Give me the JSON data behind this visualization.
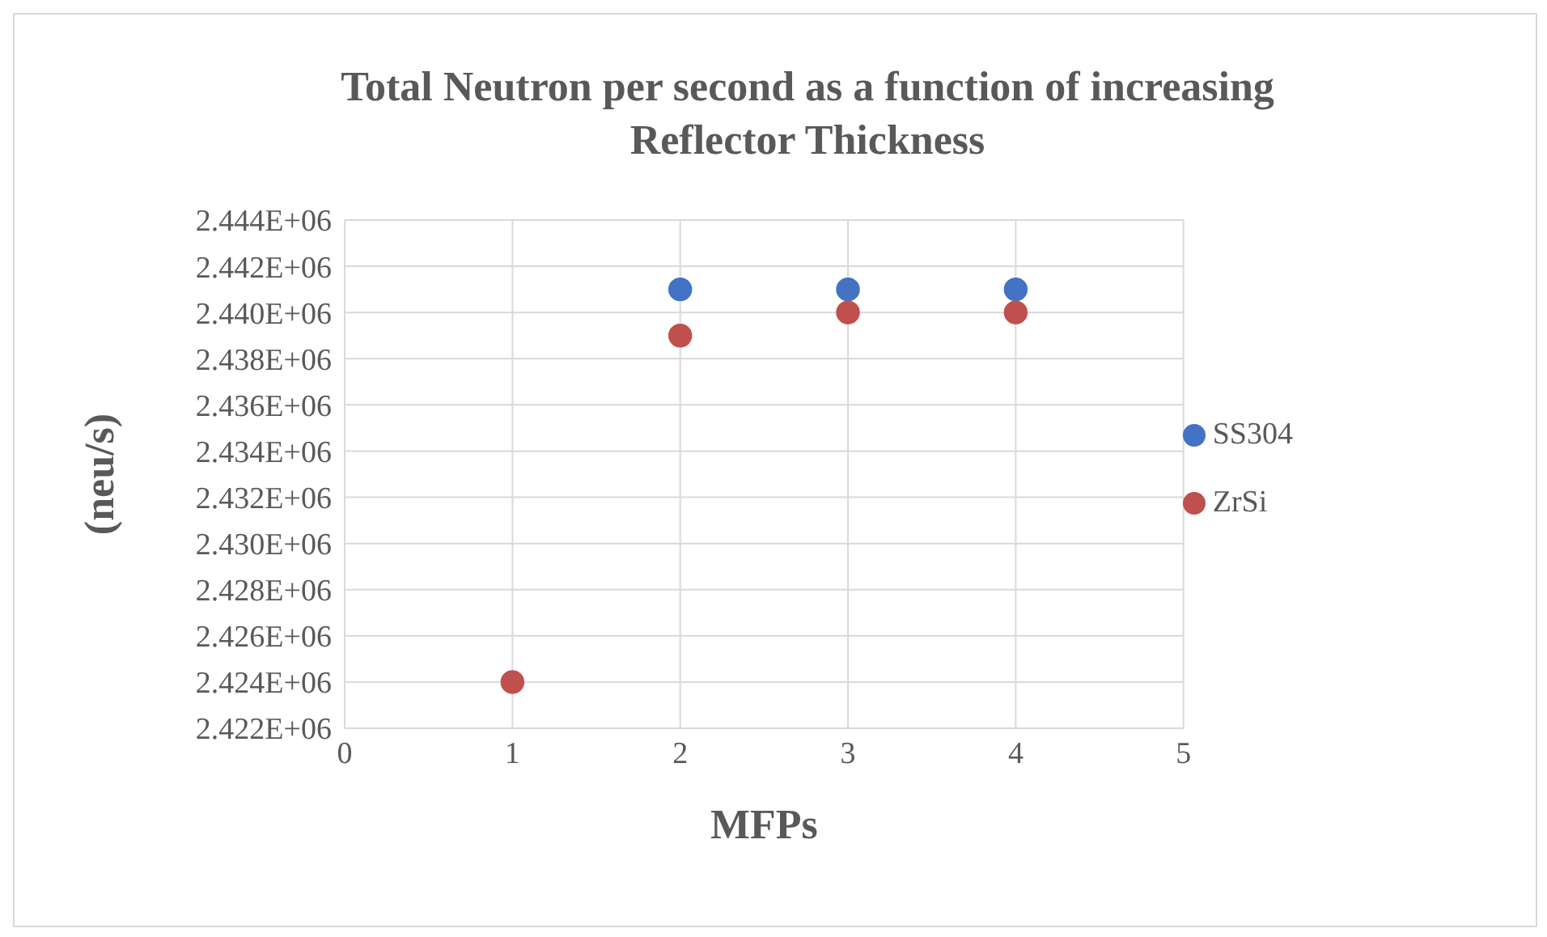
{
  "chart_data": {
    "type": "scatter",
    "title": "Total Neutron per second as a function of increasing Reflector Thickness",
    "xlabel": "MFPs",
    "ylabel": "(neu/s)",
    "x": [
      1,
      2,
      3,
      4
    ],
    "series": [
      {
        "name": "SS304",
        "color": "#4472c4",
        "values": [
          null,
          2441000,
          2441000,
          2441000
        ]
      },
      {
        "name": "ZrSi",
        "color": "#c0504d",
        "values": [
          2424000,
          2439000,
          2440000,
          2440000
        ]
      }
    ],
    "xlim": [
      0,
      5
    ],
    "xticks": [
      0,
      1,
      2,
      3,
      4,
      5
    ],
    "ylim": [
      2422000,
      2444000
    ],
    "yticks": [
      {
        "value": 2422000,
        "label": "2.422E+06"
      },
      {
        "value": 2424000,
        "label": "2.424E+06"
      },
      {
        "value": 2426000,
        "label": "2.426E+06"
      },
      {
        "value": 2428000,
        "label": "2.428E+06"
      },
      {
        "value": 2430000,
        "label": "2.430E+06"
      },
      {
        "value": 2432000,
        "label": "2.432E+06"
      },
      {
        "value": 2434000,
        "label": "2.434E+06"
      },
      {
        "value": 2436000,
        "label": "2.436E+06"
      },
      {
        "value": 2438000,
        "label": "2.438E+06"
      },
      {
        "value": 2440000,
        "label": "2.440E+06"
      },
      {
        "value": 2442000,
        "label": "2.442E+06"
      },
      {
        "value": 2444000,
        "label": "2.444E+06"
      }
    ],
    "grid": true,
    "legend": "right",
    "marker": "circle"
  }
}
